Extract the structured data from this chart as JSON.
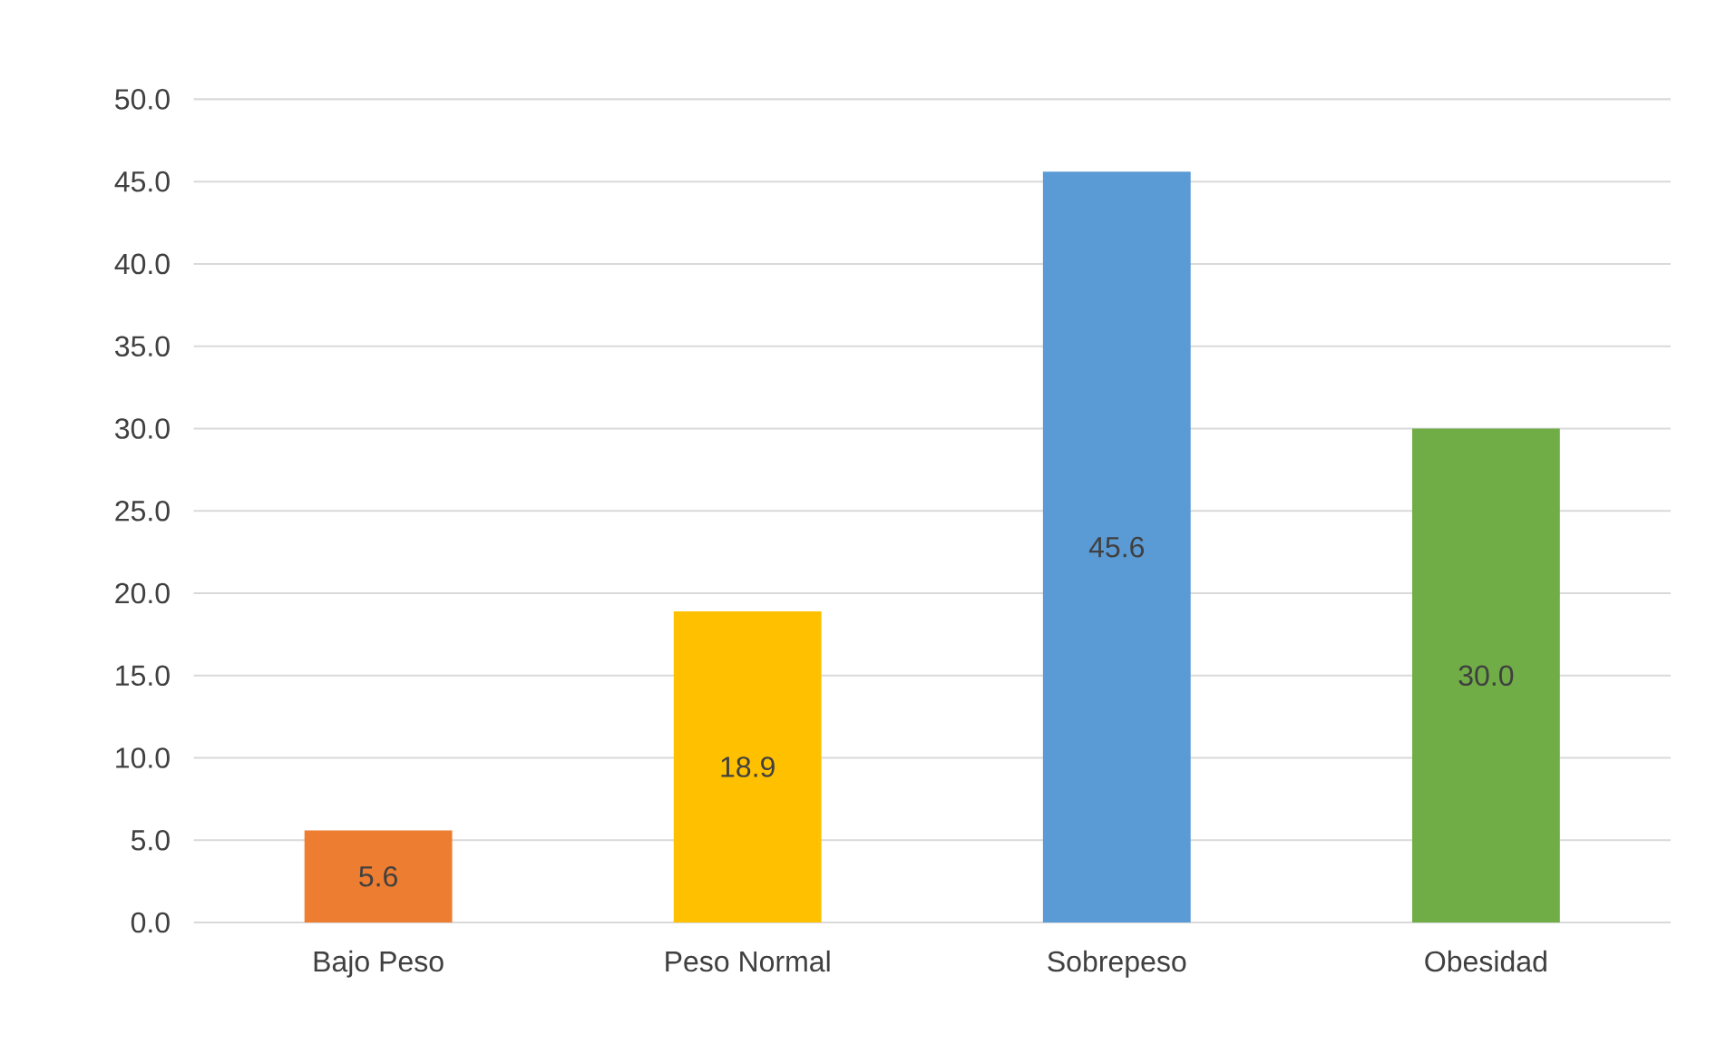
{
  "chart_data": {
    "type": "bar",
    "categories": [
      "Bajo Peso",
      "Peso Normal",
      "Sobrepeso",
      "Obesidad"
    ],
    "values": [
      5.6,
      18.9,
      45.6,
      30.0
    ],
    "colors": [
      "#ed7d31",
      "#ffc000",
      "#5b9bd5",
      "#70ad47"
    ],
    "value_labels": [
      "5.6",
      "18.9",
      "45.6",
      "30.0"
    ],
    "ylim": [
      0,
      50
    ],
    "yticks": [
      {
        "value": 0,
        "label": "0.0"
      },
      {
        "value": 5,
        "label": "5.0"
      },
      {
        "value": 10,
        "label": "10.0"
      },
      {
        "value": 15,
        "label": "15.0"
      },
      {
        "value": 20,
        "label": "20.0"
      },
      {
        "value": 25,
        "label": "25.0"
      },
      {
        "value": 30,
        "label": "30.0"
      },
      {
        "value": 35,
        "label": "35.0"
      },
      {
        "value": 40,
        "label": "40.0"
      },
      {
        "value": 45,
        "label": "45.0"
      },
      {
        "value": 50,
        "label": "50.0"
      }
    ],
    "grid": "y"
  }
}
